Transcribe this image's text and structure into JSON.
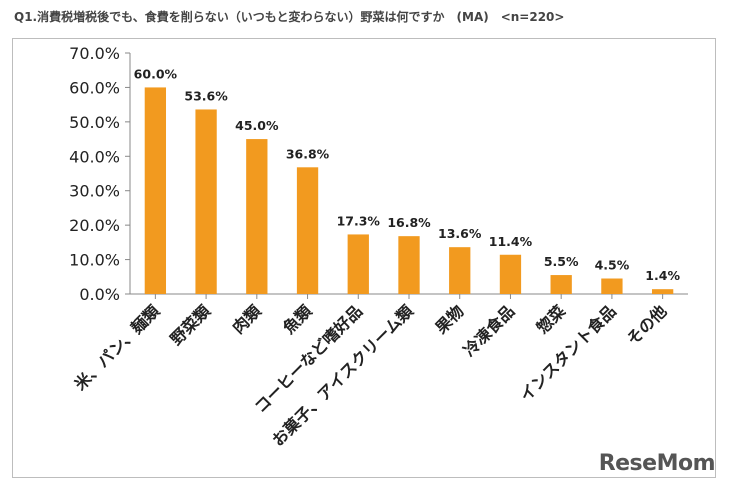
{
  "title": "Q1.消費税増税後でも、食費を削らない（いつもと変わらない）野菜は何ですか　(MA)　<n=220>",
  "watermark": "ReseMom",
  "chart_data": {
    "type": "bar",
    "categories": [
      "米、パン、麺類",
      "野菜類",
      "肉類",
      "魚類",
      "コーヒーなど嗜好品",
      "お菓子、アイスクリーム類",
      "果物",
      "冷凍食品",
      "惣菜",
      "インスタント食品",
      "その他"
    ],
    "values": [
      60.0,
      53.6,
      45.0,
      36.8,
      17.3,
      16.8,
      13.6,
      11.4,
      5.5,
      4.5,
      1.4
    ],
    "data_labels": [
      "60.0%",
      "53.6%",
      "45.0%",
      "36.8%",
      "17.3%",
      "16.8%",
      "13.6%",
      "11.4%",
      "5.5%",
      "4.5%",
      "1.4%"
    ],
    "yticks": [
      "0.0%",
      "10.0%",
      "20.0%",
      "30.0%",
      "40.0%",
      "50.0%",
      "60.0%",
      "70.0%"
    ],
    "ylim": [
      0,
      70
    ],
    "title": "",
    "xlabel": "",
    "ylabel": "",
    "bar_color": "#f29a1f",
    "grid": false,
    "legend": "none"
  }
}
